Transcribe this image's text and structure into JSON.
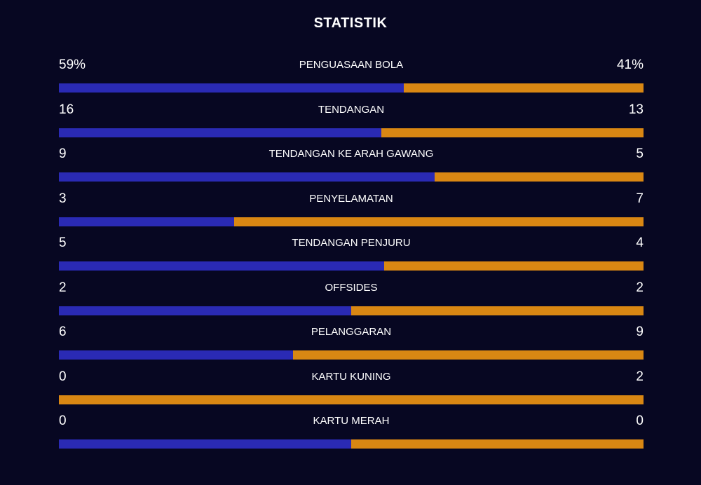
{
  "title": "STATISTIK",
  "colors": {
    "background": "#070722",
    "home": "#2a2ab4",
    "away": "#d98713",
    "text": "#ffffff"
  },
  "stats": [
    {
      "label": "PENGUASAAN BOLA",
      "home": "59%",
      "away": "41%",
      "home_share": 0.59
    },
    {
      "label": "TENDANGAN",
      "home": "16",
      "away": "13",
      "home_share": 0.552
    },
    {
      "label": "TENDANGAN KE ARAH GAWANG",
      "home": "9",
      "away": "5",
      "home_share": 0.643
    },
    {
      "label": "PENYELAMATAN",
      "home": "3",
      "away": "7",
      "home_share": 0.3
    },
    {
      "label": "TENDANGAN PENJURU",
      "home": "5",
      "away": "4",
      "home_share": 0.556
    },
    {
      "label": "OFFSIDES",
      "home": "2",
      "away": "2",
      "home_share": 0.5
    },
    {
      "label": "PELANGGARAN",
      "home": "6",
      "away": "9",
      "home_share": 0.4
    },
    {
      "label": "KARTU KUNING",
      "home": "0",
      "away": "2",
      "home_share": 0.0
    },
    {
      "label": "KARTU MERAH",
      "home": "0",
      "away": "0",
      "home_share": 0.5
    }
  ]
}
